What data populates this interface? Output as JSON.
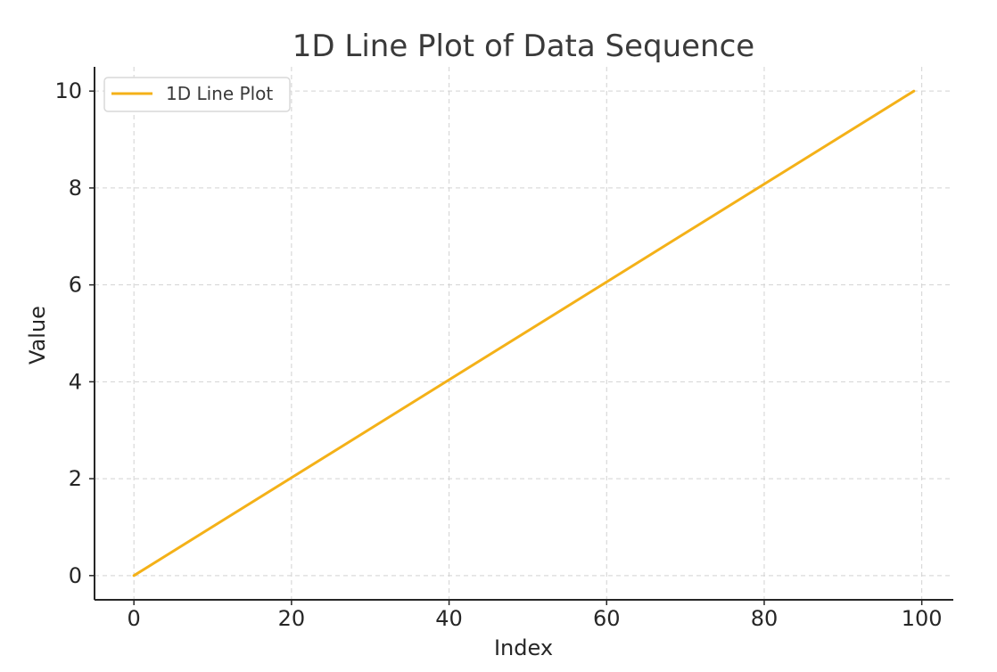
{
  "chart_data": {
    "type": "line",
    "title": "1D Line Plot of Data Sequence",
    "xlabel": "Index",
    "ylabel": "Value",
    "xlim": [
      -5,
      104
    ],
    "ylim": [
      -0.5,
      10.5
    ],
    "xticks": [
      0,
      20,
      40,
      60,
      80,
      100
    ],
    "yticks": [
      0,
      2,
      4,
      6,
      8,
      10
    ],
    "grid": true,
    "legend_position": "top-left",
    "series": [
      {
        "name": "1D Line Plot",
        "color": "#f4b118",
        "x": [
          0,
          99
        ],
        "y": [
          0,
          10
        ]
      }
    ]
  }
}
